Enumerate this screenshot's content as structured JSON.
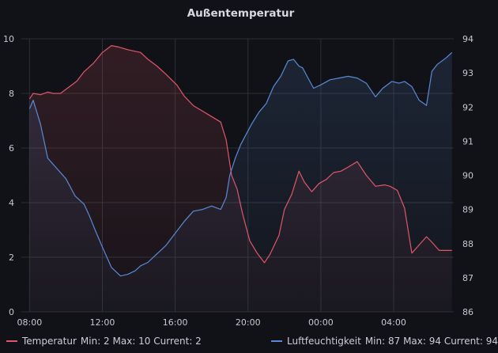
{
  "panel": {
    "title": "Außentemperatur"
  },
  "colors": {
    "background": "#111217",
    "grid": "#2c2f36",
    "axis_text": "#c7c8d0",
    "temperature": "#e0566a",
    "humidity": "#5a8ad6"
  },
  "chart_data": {
    "type": "line",
    "title": "Außentemperatur",
    "x_ticks": [
      "08:00",
      "12:00",
      "16:00",
      "20:00",
      "00:00",
      "04:00"
    ],
    "x_tick_hours": [
      8,
      12,
      16,
      20,
      24,
      28
    ],
    "xlim_hours": [
      7.55,
      31.3
    ],
    "left_axis": {
      "ticks": [
        "0",
        "2",
        "4",
        "6",
        "8",
        "10"
      ],
      "ylim": [
        0,
        10
      ]
    },
    "right_axis": {
      "ticks": [
        "86",
        "87",
        "88",
        "89",
        "90",
        "91",
        "92",
        "93",
        "94"
      ],
      "ylim": [
        86,
        94
      ]
    },
    "grid": true,
    "legend_position": "bottom",
    "series": [
      {
        "name": "Temperatur",
        "axis": "left",
        "color": "#e0566a",
        "stats": "Min: 2  Max: 10  Current: 2",
        "x_hours": [
          8.0,
          8.2,
          8.6,
          9.0,
          9.3,
          9.7,
          10.1,
          10.6,
          11.0,
          11.5,
          12.0,
          12.5,
          12.9,
          13.4,
          14.1,
          14.5,
          15.0,
          15.5,
          15.8,
          16.1,
          16.5,
          17.0,
          17.5,
          18.0,
          18.5,
          18.8,
          19.1,
          19.4,
          19.7,
          20.1,
          20.5,
          20.9,
          21.2,
          21.7,
          22.0,
          22.4,
          22.8,
          23.1,
          23.5,
          23.9,
          24.3,
          24.7,
          25.1,
          25.5,
          26.0,
          26.5,
          27.0,
          27.5,
          27.8,
          28.2,
          28.6,
          29.0,
          29.4,
          29.8,
          30.1,
          30.5,
          31.2
        ],
        "y": [
          7.8,
          8.0,
          7.95,
          8.05,
          8.0,
          8.0,
          8.2,
          8.45,
          8.8,
          9.1,
          9.5,
          9.75,
          9.7,
          9.6,
          9.5,
          9.25,
          9.0,
          8.7,
          8.5,
          8.3,
          7.9,
          7.55,
          7.35,
          7.15,
          6.95,
          6.3,
          5.0,
          4.5,
          3.6,
          2.6,
          2.15,
          1.8,
          2.1,
          2.8,
          3.75,
          4.3,
          5.15,
          4.75,
          4.4,
          4.7,
          4.85,
          5.1,
          5.15,
          5.3,
          5.5,
          5.0,
          4.6,
          4.65,
          4.6,
          4.45,
          3.8,
          2.15,
          2.45,
          2.75,
          2.55,
          2.25,
          2.25
        ]
      },
      {
        "name": "Luftfeuchtigkeit",
        "axis": "right",
        "color": "#5a8ad6",
        "stats": "Min: 87  Max: 94  Current: 94",
        "x_hours": [
          8.0,
          8.2,
          8.6,
          9.0,
          9.5,
          10.0,
          10.5,
          11.0,
          11.3,
          11.6,
          12.0,
          12.5,
          13.0,
          13.4,
          13.8,
          14.1,
          14.5,
          14.9,
          15.2,
          15.5,
          16.0,
          16.5,
          17.0,
          17.5,
          18.0,
          18.5,
          18.8,
          19.0,
          19.3,
          19.6,
          19.9,
          20.2,
          20.6,
          21.0,
          21.4,
          21.8,
          22.2,
          22.5,
          22.8,
          23.0,
          23.3,
          23.6,
          24.0,
          24.5,
          25.0,
          25.5,
          26.0,
          26.5,
          27.0,
          27.4,
          27.9,
          28.3,
          28.6,
          29.0,
          29.4,
          29.8,
          30.1,
          30.4,
          30.9,
          31.2
        ],
        "y": [
          91.95,
          92.2,
          91.5,
          90.5,
          90.2,
          89.9,
          89.4,
          89.15,
          88.8,
          88.4,
          87.9,
          87.3,
          87.05,
          87.1,
          87.2,
          87.35,
          87.45,
          87.65,
          87.8,
          87.95,
          88.3,
          88.65,
          88.95,
          89.0,
          89.1,
          89.0,
          89.35,
          90.0,
          90.5,
          90.9,
          91.2,
          91.5,
          91.85,
          92.1,
          92.6,
          92.9,
          93.35,
          93.4,
          93.2,
          93.15,
          92.85,
          92.55,
          92.65,
          92.8,
          92.85,
          92.9,
          92.85,
          92.7,
          92.3,
          92.55,
          92.75,
          92.7,
          92.75,
          92.6,
          92.2,
          92.05,
          93.05,
          93.25,
          93.45,
          93.6
        ]
      }
    ]
  }
}
